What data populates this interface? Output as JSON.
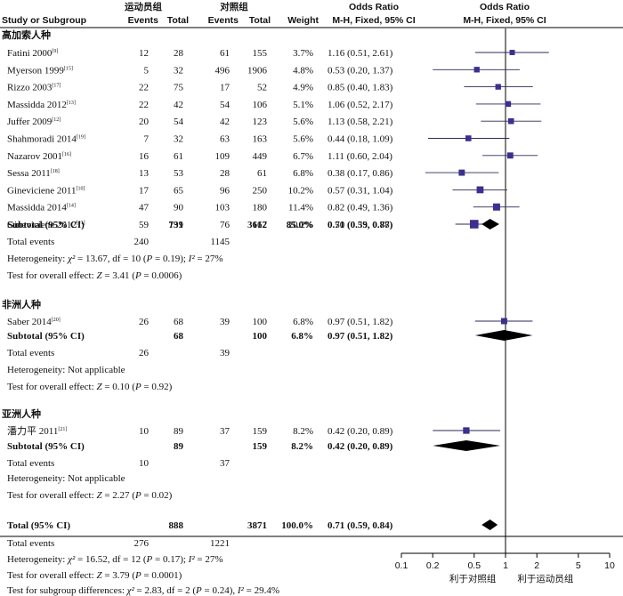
{
  "header": {
    "group_exp": "运动员组",
    "group_ctrl": "对照组",
    "study": "Study or Subgroup",
    "events1": "Events",
    "total1": "Total",
    "events2": "Events",
    "total2": "Total",
    "weight": "Weight",
    "or_text_title": "Odds Ratio",
    "or_text_sub": "M-H, Fixed, 95% CI",
    "or_plot_title": "Odds Ratio",
    "or_plot_sub": "M-H, Fixed, 95% CI"
  },
  "groups": [
    {
      "label": "高加索人种",
      "studies": [
        {
          "name": "Fatini 2000",
          "ref": "[9]",
          "e1": "12",
          "n1": "28",
          "e2": "61",
          "n2": "155",
          "weight": "3.7%",
          "or_text": "1.16 (0.51, 2.61)"
        },
        {
          "name": "Myerson 1999",
          "ref": "[15]",
          "e1": "5",
          "n1": "32",
          "e2": "496",
          "n2": "1906",
          "weight": "4.8%",
          "or_text": "0.53 (0.20, 1.37)"
        },
        {
          "name": "Rizzo 2003",
          "ref": "[17]",
          "e1": "22",
          "n1": "75",
          "e2": "17",
          "n2": "52",
          "weight": "4.9%",
          "or_text": "0.85 (0.40, 1.83)"
        },
        {
          "name": "Massidda 2012",
          "ref": "[13]",
          "e1": "22",
          "n1": "42",
          "e2": "54",
          "n2": "106",
          "weight": "5.1%",
          "or_text": "1.06 (0.52, 2.17)"
        },
        {
          "name": "Juffer 2009",
          "ref": "[12]",
          "e1": "20",
          "n1": "54",
          "e2": "42",
          "n2": "123",
          "weight": "5.6%",
          "or_text": "1.13 (0.58, 2.21)"
        },
        {
          "name": "Shahmoradi 2014",
          "ref": "[19]",
          "e1": "7",
          "n1": "32",
          "e2": "63",
          "n2": "163",
          "weight": "5.6%",
          "or_text": "0.44 (0.18, 1.09)"
        },
        {
          "name": "Nazarov 2001",
          "ref": "[16]",
          "e1": "16",
          "n1": "61",
          "e2": "109",
          "n2": "449",
          "weight": "6.7%",
          "or_text": "1.11 (0.60, 2.04)"
        },
        {
          "name": "Sessa 2011",
          "ref": "[18]",
          "e1": "13",
          "n1": "53",
          "e2": "28",
          "n2": "61",
          "weight": "6.8%",
          "or_text": "0.38 (0.17, 0.86)"
        },
        {
          "name": "Gineviciene 2011",
          "ref": "[10]",
          "e1": "17",
          "n1": "65",
          "e2": "96",
          "n2": "250",
          "weight": "10.2%",
          "or_text": "0.57 (0.31, 1.04)"
        },
        {
          "name": "Massidda 2014",
          "ref": "[14]",
          "e1": "47",
          "n1": "90",
          "e2": "103",
          "n2": "180",
          "weight": "11.4%",
          "or_text": "0.82 (0.49, 1.36)"
        },
        {
          "name": "Gineviciene 2012",
          "ref": "[11]",
          "e1": "59",
          "n1": "199",
          "e2": "76",
          "n2": "167",
          "weight": "20.2%",
          "or_text": "0.50 (0.33, 0.78)"
        }
      ],
      "subtotal": {
        "label": "Subtotal (95% CI)",
        "n1": "731",
        "n2": "3612",
        "weight": "85.0%",
        "or_text": "0.71 (0.59, 0.87)"
      },
      "total_events": {
        "label": "Total events",
        "e1": "240",
        "e2": "1145"
      },
      "heterogeneity": "Heterogeneity: χ² = 13.67, df = 10 (P = 0.19); I² = 27%",
      "overall": "Test for overall effect: Z = 3.41 (P = 0.0006)"
    },
    {
      "label": "非洲人种",
      "studies": [
        {
          "name": "Saber 2014",
          "ref": "[20]",
          "e1": "26",
          "n1": "68",
          "e2": "39",
          "n2": "100",
          "weight": "6.8%",
          "or_text": "0.97 (0.51, 1.82)"
        }
      ],
      "subtotal": {
        "label": "Subtotal (95% CI)",
        "n1": "68",
        "n2": "100",
        "weight": "6.8%",
        "or_text": "0.97 (0.51, 1.82)"
      },
      "total_events": {
        "label": "Total events",
        "e1": "26",
        "e2": "39"
      },
      "heterogeneity": "Heterogeneity: Not applicable",
      "overall": "Test for overall effect: Z = 0.10 (P = 0.92)"
    },
    {
      "label": "亚洲人种",
      "studies": [
        {
          "name": "潘力平 2011",
          "ref": "[21]",
          "e1": "10",
          "n1": "89",
          "e2": "37",
          "n2": "159",
          "weight": "8.2%",
          "or_text": "0.42 (0.20, 0.89)"
        }
      ],
      "subtotal": {
        "label": "Subtotal (95% CI)",
        "n1": "89",
        "n2": "159",
        "weight": "8.2%",
        "or_text": "0.42 (0.20, 0.89)"
      },
      "total_events": {
        "label": "Total events",
        "e1": "10",
        "e2": "37"
      },
      "heterogeneity": "Heterogeneity: Not applicable",
      "overall": "Test for overall effect: Z = 2.27 (P = 0.02)"
    }
  ],
  "total": {
    "label": "Total (95% CI)",
    "n1": "888",
    "n2": "3871",
    "weight": "100.0%",
    "or_text": "0.71 (0.59, 0.84)",
    "events_label": "Total events",
    "e1": "276",
    "e2": "1221",
    "heterogeneity": "Heterogeneity: χ² = 16.52, df = 12 (P = 0.17); I² = 27%",
    "overall": "Test for overall effect: Z = 3.79 (P = 0.0001)",
    "subgroup_diff": "Test for subgroup differences: χ² = 2.83, df = 2 (P = 0.24), I² = 29.4%"
  },
  "chart_data": {
    "type": "scatter",
    "scale": "log",
    "xlim": [
      0.1,
      10
    ],
    "ticks": [
      0.1,
      0.2,
      0.5,
      1,
      2,
      5,
      10
    ],
    "tick_labels": [
      "0.1",
      "0.2",
      "0.5",
      "1",
      "2",
      "5",
      "10"
    ],
    "favours_left": "利于对照组",
    "favours_right": "利于运动员组",
    "studies": [
      {
        "or": 1.16,
        "lo": 0.51,
        "hi": 2.61,
        "w": 3.7
      },
      {
        "or": 0.53,
        "lo": 0.2,
        "hi": 1.37,
        "w": 4.8
      },
      {
        "or": 0.85,
        "lo": 0.4,
        "hi": 1.83,
        "w": 4.9
      },
      {
        "or": 1.06,
        "lo": 0.52,
        "hi": 2.17,
        "w": 5.1
      },
      {
        "or": 1.13,
        "lo": 0.58,
        "hi": 2.21,
        "w": 5.6
      },
      {
        "or": 0.44,
        "lo": 0.18,
        "hi": 1.09,
        "w": 5.6
      },
      {
        "or": 1.11,
        "lo": 0.6,
        "hi": 2.04,
        "w": 6.7
      },
      {
        "or": 0.38,
        "lo": 0.17,
        "hi": 0.86,
        "w": 6.8
      },
      {
        "or": 0.57,
        "lo": 0.31,
        "hi": 1.04,
        "w": 10.2
      },
      {
        "or": 0.82,
        "lo": 0.49,
        "hi": 1.36,
        "w": 11.4
      },
      {
        "or": 0.5,
        "lo": 0.33,
        "hi": 0.78,
        "w": 20.2
      },
      {
        "or": 0.97,
        "lo": 0.51,
        "hi": 1.82,
        "w": 6.8
      },
      {
        "or": 0.42,
        "lo": 0.2,
        "hi": 0.89,
        "w": 8.2
      }
    ],
    "diamonds": [
      {
        "or": 0.71,
        "lo": 0.59,
        "hi": 0.87
      },
      {
        "or": 0.97,
        "lo": 0.51,
        "hi": 1.82
      },
      {
        "or": 0.42,
        "lo": 0.2,
        "hi": 0.89
      },
      {
        "or": 0.71,
        "lo": 0.59,
        "hi": 0.84
      }
    ],
    "marker_color": "#3b2f8f",
    "diamond_color": "#000000"
  }
}
